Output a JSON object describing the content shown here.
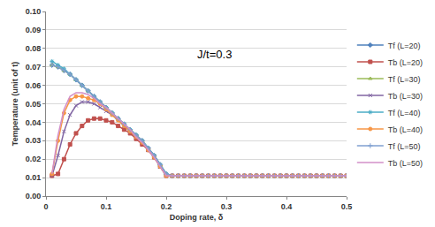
{
  "chart_data": {
    "type": "line",
    "annotation": "J/t=0.3",
    "x_label": "Doping rate, δ",
    "y_label": "Temperature (unit of t)",
    "x": [
      0.01,
      0.02,
      0.03,
      0.04,
      0.05,
      0.06,
      0.07,
      0.08,
      0.09,
      0.1,
      0.11,
      0.12,
      0.13,
      0.14,
      0.15,
      0.16,
      0.17,
      0.18,
      0.19,
      0.2,
      0.21,
      0.22,
      0.23,
      0.24,
      0.25,
      0.26,
      0.27,
      0.28,
      0.29,
      0.3,
      0.31,
      0.32,
      0.33,
      0.34,
      0.35,
      0.36,
      0.37,
      0.38,
      0.39,
      0.4,
      0.41,
      0.42,
      0.43,
      0.44,
      0.45,
      0.46,
      0.47,
      0.48,
      0.49,
      0.5
    ],
    "xlim": [
      0,
      0.5
    ],
    "xticks": [
      0,
      0.1,
      0.2,
      0.3,
      0.4,
      0.5
    ],
    "ylim": [
      0,
      0.1
    ],
    "yticks": [
      {
        "value": 0,
        "label": "0.00"
      },
      {
        "value": 0.01,
        "label": "0.01"
      },
      {
        "value": 0.02,
        "label": "0.02"
      },
      {
        "value": 0.03,
        "label": "0.03"
      },
      {
        "value": 0.04,
        "label": "0.04"
      },
      {
        "value": 0.05,
        "label": "0.05"
      },
      {
        "value": 0.06,
        "label": "0.06"
      },
      {
        "value": 0.07,
        "label": "0.07"
      },
      {
        "value": 0.08,
        "label": "0.08"
      },
      {
        "value": 0.09,
        "label": "0.09"
      },
      {
        "value": 0.1,
        "label": "0.10"
      }
    ],
    "grid": true,
    "legend": "right",
    "series": [
      {
        "name": "Tf (L=20)",
        "color": "#4f81bd",
        "marker": "diamond",
        "values": [
          0.071,
          0.07,
          0.068,
          0.066,
          0.063,
          0.06,
          0.057,
          0.054,
          0.051,
          0.048,
          0.045,
          0.042,
          0.039,
          0.036,
          0.033,
          0.03,
          0.026,
          0.022,
          0.017,
          0.012,
          0.011,
          0.011,
          0.011,
          0.011,
          0.011,
          0.011,
          0.011,
          0.011,
          0.011,
          0.011,
          0.011,
          0.011,
          0.011,
          0.011,
          0.011,
          0.011,
          0.011,
          0.011,
          0.011,
          0.011,
          0.011,
          0.011,
          0.011,
          0.011,
          0.011,
          0.011,
          0.011,
          0.011,
          0.011,
          0.011
        ]
      },
      {
        "name": "Tb (L=20)",
        "color": "#c0504d",
        "marker": "square",
        "values": [
          0.011,
          0.012,
          0.02,
          0.028,
          0.034,
          0.038,
          0.041,
          0.042,
          0.042,
          0.041,
          0.04,
          0.038,
          0.036,
          0.034,
          0.031,
          0.028,
          0.025,
          0.021,
          0.016,
          0.011,
          0.011,
          0.011,
          0.011,
          0.011,
          0.011,
          0.011,
          0.011,
          0.011,
          0.011,
          0.011,
          0.011,
          0.011,
          0.011,
          0.011,
          0.011,
          0.011,
          0.011,
          0.011,
          0.011,
          0.011,
          0.011,
          0.011,
          0.011,
          0.011,
          0.011,
          0.011,
          0.011,
          0.011,
          0.011,
          0.011
        ]
      },
      {
        "name": "Tf (L=30)",
        "color": "#9bbb59",
        "marker": "triangle",
        "values": [
          0.071,
          0.07,
          0.068,
          0.066,
          0.063,
          0.06,
          0.057,
          0.054,
          0.051,
          0.048,
          0.045,
          0.042,
          0.039,
          0.036,
          0.033,
          0.03,
          0.026,
          0.022,
          0.017,
          0.012,
          0.011,
          0.011,
          0.011,
          0.011,
          0.011,
          0.011,
          0.011,
          0.011,
          0.011,
          0.011,
          0.011,
          0.011,
          0.011,
          0.011,
          0.011,
          0.011,
          0.011,
          0.011,
          0.011,
          0.011,
          0.011,
          0.011,
          0.011,
          0.011,
          0.011,
          0.011,
          0.011,
          0.011,
          0.011,
          0.011
        ]
      },
      {
        "name": "Tb (L=30)",
        "color": "#8064a2",
        "marker": "x",
        "values": [
          0.011,
          0.022,
          0.035,
          0.044,
          0.049,
          0.051,
          0.051,
          0.05,
          0.048,
          0.046,
          0.044,
          0.041,
          0.038,
          0.035,
          0.032,
          0.029,
          0.025,
          0.021,
          0.016,
          0.011,
          0.011,
          0.011,
          0.011,
          0.011,
          0.011,
          0.011,
          0.011,
          0.011,
          0.011,
          0.011,
          0.011,
          0.011,
          0.011,
          0.011,
          0.011,
          0.011,
          0.011,
          0.011,
          0.011,
          0.011,
          0.011,
          0.011,
          0.011,
          0.011,
          0.011,
          0.011,
          0.011,
          0.011,
          0.011,
          0.011
        ]
      },
      {
        "name": "Tf (L=40)",
        "color": "#4bacc6",
        "marker": "asterisk",
        "values": [
          0.073,
          0.071,
          0.069,
          0.066,
          0.063,
          0.06,
          0.057,
          0.054,
          0.051,
          0.048,
          0.045,
          0.042,
          0.039,
          0.036,
          0.033,
          0.03,
          0.026,
          0.022,
          0.017,
          0.012,
          0.011,
          0.011,
          0.011,
          0.011,
          0.011,
          0.011,
          0.011,
          0.011,
          0.011,
          0.011,
          0.011,
          0.011,
          0.011,
          0.011,
          0.011,
          0.011,
          0.011,
          0.011,
          0.011,
          0.011,
          0.011,
          0.011,
          0.011,
          0.011,
          0.011,
          0.011,
          0.011,
          0.011,
          0.011,
          0.011
        ]
      },
      {
        "name": "Tb (L=40)",
        "color": "#f79646",
        "marker": "circle",
        "values": [
          0.012,
          0.03,
          0.045,
          0.052,
          0.054,
          0.054,
          0.053,
          0.052,
          0.05,
          0.047,
          0.044,
          0.041,
          0.038,
          0.035,
          0.032,
          0.029,
          0.025,
          0.021,
          0.016,
          0.011,
          0.011,
          0.011,
          0.011,
          0.011,
          0.011,
          0.011,
          0.011,
          0.011,
          0.011,
          0.011,
          0.011,
          0.011,
          0.011,
          0.011,
          0.011,
          0.011,
          0.011,
          0.011,
          0.011,
          0.011,
          0.011,
          0.011,
          0.011,
          0.011,
          0.011,
          0.011,
          0.011,
          0.011,
          0.011,
          0.011
        ]
      },
      {
        "name": "Tf (L=50)",
        "color": "#7f9fd0",
        "marker": "cross",
        "values": [
          0.071,
          0.07,
          0.068,
          0.066,
          0.063,
          0.06,
          0.057,
          0.054,
          0.051,
          0.048,
          0.045,
          0.042,
          0.039,
          0.036,
          0.033,
          0.03,
          0.026,
          0.022,
          0.017,
          0.012,
          0.011,
          0.011,
          0.011,
          0.011,
          0.011,
          0.011,
          0.011,
          0.011,
          0.011,
          0.011,
          0.011,
          0.011,
          0.011,
          0.011,
          0.011,
          0.011,
          0.011,
          0.011,
          0.011,
          0.011,
          0.011,
          0.011,
          0.011,
          0.011,
          0.011,
          0.011,
          0.011,
          0.011,
          0.011,
          0.011
        ]
      },
      {
        "name": "Tb (L=50)",
        "color": "#d28fc8",
        "marker": "none",
        "values": [
          0.012,
          0.033,
          0.047,
          0.054,
          0.056,
          0.056,
          0.055,
          0.053,
          0.05,
          0.048,
          0.045,
          0.042,
          0.039,
          0.036,
          0.032,
          0.029,
          0.025,
          0.021,
          0.016,
          0.011,
          0.011,
          0.011,
          0.011,
          0.011,
          0.011,
          0.011,
          0.011,
          0.011,
          0.011,
          0.011,
          0.011,
          0.011,
          0.011,
          0.011,
          0.011,
          0.011,
          0.011,
          0.011,
          0.011,
          0.011,
          0.011,
          0.011,
          0.011,
          0.011,
          0.011,
          0.011,
          0.011,
          0.011,
          0.011,
          0.011
        ]
      }
    ]
  }
}
